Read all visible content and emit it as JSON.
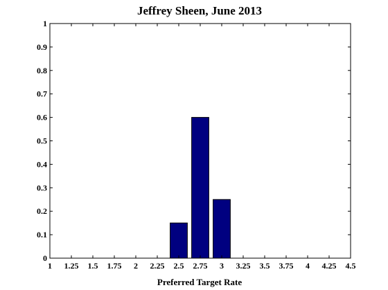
{
  "chart_data": {
    "type": "bar",
    "title": "Jeffrey Sheen, June 2013",
    "xlabel": "Preferred Target Rate",
    "ylabel": "",
    "xlim": [
      1,
      4.5
    ],
    "ylim": [
      0,
      1
    ],
    "x_ticks": [
      "1",
      "1.25",
      "1.5",
      "1.75",
      "2",
      "2.25",
      "2.5",
      "2.75",
      "3",
      "3.25",
      "3.5",
      "3.75",
      "4",
      "4.25",
      "4.5"
    ],
    "y_ticks": [
      "0",
      "0.1",
      "0.2",
      "0.3",
      "0.4",
      "0.5",
      "0.6",
      "0.7",
      "0.8",
      "0.9",
      "1"
    ],
    "bar_width": 0.2,
    "x": [
      2.5,
      2.75,
      3.0
    ],
    "values": [
      0.15,
      0.6,
      0.25
    ],
    "bar_color": "#000080",
    "grid": false,
    "legend": "none"
  }
}
